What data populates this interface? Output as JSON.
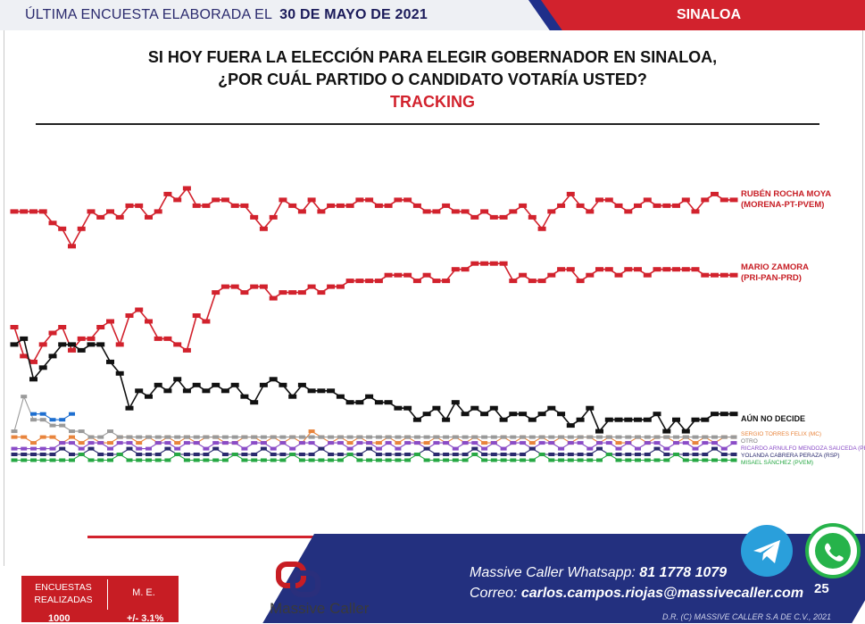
{
  "header": {
    "prefix": "ÚLTIMA ENCUESTA ELABORADA EL",
    "date": "30 DE MAYO DE 2021",
    "state": "SINALOA"
  },
  "title": {
    "line1": "SI HOY FUERA LA ELECCIÓN PARA ELEGIR GOBERNADOR EN SINALOA,",
    "line2": "¿POR CUÁL PARTIDO O CANDIDATO VOTARÍA USTED?",
    "line3": "TRACKING"
  },
  "chart_data": {
    "type": "line",
    "title": "TRACKING",
    "grid": false,
    "legend": "right",
    "series": [
      {
        "name": "RUBÉN ROCHA MOYA (MORENA-PT-PVEM)",
        "color": "#d2222d",
        "values": [
          44,
          44,
          44,
          44,
          42,
          41,
          38,
          41,
          44,
          43,
          44,
          43,
          45,
          45,
          43,
          44,
          47,
          46,
          48,
          45,
          45,
          46,
          46,
          45,
          45,
          43,
          41,
          43,
          46,
          45,
          44,
          46,
          44,
          45,
          45,
          45,
          46,
          46,
          45,
          45,
          46,
          46,
          45,
          44,
          44,
          45,
          44,
          44,
          43,
          44,
          43,
          43,
          44,
          45,
          43,
          41,
          44,
          45,
          47,
          45,
          44,
          46,
          46,
          45,
          44,
          45,
          46,
          45,
          45,
          45,
          46,
          44,
          46,
          47,
          46,
          46
        ]
      },
      {
        "name": "MARIO ZAMORA (PRI-PAN-PRD)",
        "color": "#d2222d",
        "values": [
          24,
          19,
          18,
          21,
          23,
          24,
          20,
          22,
          22,
          24,
          25,
          21,
          26,
          27,
          25,
          22,
          22,
          21,
          20,
          26,
          25,
          30,
          31,
          31,
          30,
          31,
          31,
          29,
          30,
          30,
          30,
          31,
          30,
          31,
          31,
          32,
          32,
          32,
          32,
          33,
          33,
          33,
          32,
          33,
          32,
          32,
          34,
          34,
          35,
          35,
          35,
          35,
          32,
          33,
          32,
          32,
          33,
          34,
          34,
          32,
          33,
          34,
          34,
          33,
          34,
          34,
          33,
          34,
          34,
          34,
          34,
          34,
          33,
          33,
          33,
          33
        ]
      },
      {
        "name": "AÚN NO DECIDE",
        "color": "#111111",
        "values": [
          21,
          22,
          15,
          17,
          19,
          21,
          21,
          20,
          21,
          21,
          18,
          16,
          10,
          13,
          12,
          14,
          13,
          15,
          13,
          14,
          13,
          14,
          13,
          14,
          12,
          11,
          14,
          15,
          14,
          12,
          14,
          13,
          13,
          13,
          12,
          11,
          11,
          12,
          11,
          11,
          10,
          10,
          8,
          9,
          10,
          8,
          11,
          9,
          10,
          9,
          10,
          8,
          9,
          9,
          8,
          9,
          10,
          9,
          7,
          8,
          10,
          6,
          8,
          8,
          8,
          8,
          8,
          9,
          6,
          8,
          6,
          8,
          8,
          9,
          9,
          9
        ]
      },
      {
        "name": "SERGIO TORRES FELIX (MC)",
        "color": "#e8843c",
        "values": [
          5,
          5,
          4,
          5,
          5,
          4,
          5,
          4,
          5,
          4,
          4,
          5,
          5,
          4,
          5,
          4,
          5,
          4,
          5,
          4,
          5,
          5,
          4,
          4,
          5,
          5,
          4,
          5,
          4,
          5,
          4,
          6,
          5,
          4,
          5,
          4,
          5,
          4,
          4,
          5,
          4,
          5,
          4,
          4,
          5,
          4,
          5,
          4,
          5,
          4,
          4,
          5,
          4,
          5,
          4,
          5,
          4,
          5,
          4,
          5,
          5,
          4,
          5,
          4,
          4,
          5,
          4,
          5,
          5,
          4,
          5,
          4,
          5,
          4,
          5,
          5
        ]
      },
      {
        "name": "OTRO",
        "color": "#9a9a9a",
        "values": [
          6,
          12,
          8,
          8,
          7,
          7,
          6,
          6,
          5,
          5,
          6,
          5,
          5,
          5,
          5,
          5,
          5,
          5,
          5,
          5,
          5,
          5,
          5,
          5,
          5,
          5,
          5,
          5,
          5,
          5,
          5,
          5,
          5,
          5,
          5,
          5,
          5,
          5,
          5,
          5,
          5,
          5,
          5,
          5,
          5,
          5,
          5,
          5,
          5,
          5,
          5,
          5,
          5,
          5,
          5,
          5,
          5,
          5,
          5,
          5,
          5,
          5,
          5,
          5,
          5,
          5,
          5,
          5,
          5,
          5,
          5,
          5,
          5,
          5,
          5,
          5
        ]
      },
      {
        "name": "RICARDO ARNULFO MENDOZA SAUCEDA (PES)",
        "color": "#8a4cc7",
        "values": [
          3,
          3,
          3,
          3,
          3,
          4,
          4,
          3,
          4,
          4,
          3,
          4,
          4,
          3,
          3,
          4,
          4,
          3,
          4,
          4,
          3,
          4,
          4,
          4,
          3,
          4,
          4,
          3,
          4,
          3,
          4,
          4,
          3,
          4,
          4,
          3,
          4,
          4,
          3,
          4,
          3,
          4,
          4,
          3,
          4,
          4,
          3,
          4,
          4,
          3,
          4,
          3,
          4,
          4,
          3,
          4,
          4,
          3,
          4,
          4,
          3,
          4,
          4,
          3,
          4,
          3,
          4,
          4,
          3,
          4,
          4,
          3,
          4,
          4,
          3,
          4
        ]
      },
      {
        "name": "YOLANDA CABRERA PERAZA (RSP)",
        "color": "#2a2a6e",
        "values": [
          2,
          2,
          2,
          2,
          2,
          3,
          2,
          2,
          3,
          2,
          2,
          2,
          3,
          2,
          2,
          2,
          3,
          2,
          2,
          2,
          2,
          3,
          2,
          2,
          2,
          2,
          3,
          2,
          2,
          2,
          2,
          2,
          3,
          2,
          2,
          2,
          2,
          3,
          2,
          2,
          2,
          2,
          2,
          3,
          2,
          2,
          2,
          2,
          3,
          2,
          2,
          2,
          2,
          2,
          3,
          2,
          2,
          2,
          2,
          2,
          2,
          3,
          2,
          2,
          2,
          2,
          2,
          3,
          2,
          2,
          2,
          2,
          2,
          3,
          2,
          2
        ]
      },
      {
        "name": "MISAEL SÁNCHEZ (PVEM)",
        "color": "#27a844",
        "values": [
          1,
          1,
          1,
          1,
          1,
          1,
          1,
          2,
          1,
          1,
          1,
          2,
          1,
          1,
          1,
          1,
          1,
          2,
          1,
          1,
          1,
          1,
          1,
          2,
          1,
          1,
          1,
          1,
          1,
          2,
          1,
          1,
          1,
          1,
          1,
          2,
          1,
          1,
          1,
          1,
          1,
          1,
          2,
          1,
          1,
          1,
          1,
          1,
          2,
          1,
          1,
          1,
          1,
          1,
          1,
          2,
          1,
          1,
          1,
          1,
          1,
          1,
          2,
          1,
          1,
          1,
          1,
          1,
          1,
          2,
          1,
          1,
          1,
          1,
          1,
          1
        ]
      },
      {
        "name": "",
        "color": "#1e6fd0",
        "values": [
          null,
          null,
          9,
          9,
          8,
          8,
          9,
          null,
          null,
          null,
          null,
          null,
          null,
          null,
          null,
          null,
          null,
          null,
          null,
          null,
          null,
          null,
          null,
          null,
          null,
          null,
          null,
          null,
          null,
          null,
          null,
          null,
          null,
          null,
          null,
          null,
          null,
          null,
          null,
          null,
          null,
          null,
          null,
          null,
          null,
          null,
          null,
          null,
          null,
          null,
          null,
          null,
          null,
          null,
          null,
          null,
          null,
          null,
          null,
          null,
          null,
          null,
          null,
          null,
          null,
          null,
          null,
          null,
          null,
          null,
          null,
          null,
          null,
          null,
          null,
          null
        ]
      }
    ]
  },
  "footer": {
    "whatsapp_label": "Massive Caller Whatsapp:",
    "whatsapp_number": "81 1778 1079",
    "email_label": "Correo:",
    "email": "carlos.campos.riojas@massivecaller.com",
    "copyright": "D.R. (C) MASSIVE CALLER S.A DE C.V., 2021",
    "table_h1": "ENCUESTAS REALIZADAS",
    "table_h2": "M. E.",
    "table_v1": "1000",
    "table_v2": "+/- 3.1%",
    "brand": "Massive Caller",
    "page": "25"
  }
}
